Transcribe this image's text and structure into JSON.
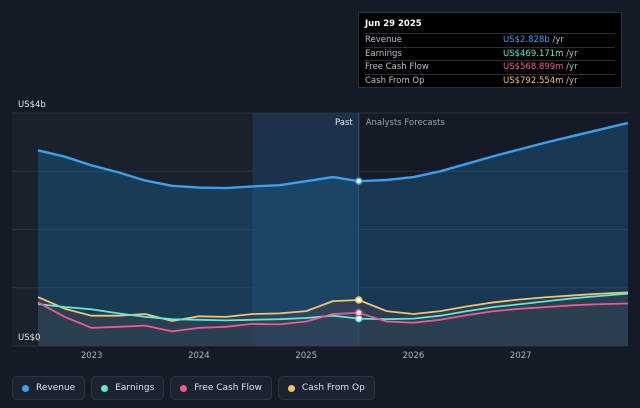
{
  "tooltip": {
    "date": "Jun 29 2025",
    "rows": [
      {
        "label": "Revenue",
        "value": "US$2.828b",
        "unit": "/yr",
        "color": "#3aa0f0"
      },
      {
        "label": "Earnings",
        "value": "US$469.171m",
        "unit": "/yr",
        "color": "#5ee8d6"
      },
      {
        "label": "Free Cash Flow",
        "value": "US$568.899m",
        "unit": "/yr",
        "color": "#f05a8e"
      },
      {
        "label": "Cash From Op",
        "value": "US$792.554m",
        "unit": "/yr",
        "color": "#f3c26b"
      }
    ]
  },
  "legend": [
    {
      "label": "Revenue",
      "color": "#3aa0f0"
    },
    {
      "label": "Earnings",
      "color": "#5ee8d6"
    },
    {
      "label": "Free Cash Flow",
      "color": "#f05a8e"
    },
    {
      "label": "Cash From Op",
      "color": "#f3c26b"
    }
  ],
  "chart_data": {
    "type": "line",
    "ylabel_top": "US$4b",
    "ylabel_bottom": "US$0",
    "ylim": [
      0,
      4
    ],
    "xlim": [
      2022.5,
      2028.0
    ],
    "x_ticks": [
      "2023",
      "2024",
      "2025",
      "2026",
      "2027"
    ],
    "x_tick_values": [
      2023,
      2024,
      2025,
      2026,
      2027
    ],
    "past_label": "Past",
    "forecast_label": "Analysts Forecasts",
    "divider_x": 2025.49,
    "past_band_start": 2024.5,
    "grid": true,
    "series": [
      {
        "name": "Revenue",
        "color": "#3aa0f0",
        "x": [
          2022.5,
          2022.75,
          2023.0,
          2023.25,
          2023.5,
          2023.75,
          2024.0,
          2024.25,
          2024.5,
          2024.75,
          2025.0,
          2025.25,
          2025.49,
          2025.75,
          2026.0,
          2026.25,
          2026.5,
          2026.75,
          2027.0,
          2027.25,
          2027.5,
          2027.75,
          2028.0
        ],
        "y": [
          3.36,
          3.25,
          3.1,
          2.98,
          2.84,
          2.75,
          2.72,
          2.71,
          2.74,
          2.76,
          2.83,
          2.9,
          2.83,
          2.85,
          2.9,
          3.0,
          3.13,
          3.26,
          3.38,
          3.5,
          3.61,
          3.72,
          3.83
        ]
      },
      {
        "name": "Earnings",
        "color": "#5ee8d6",
        "x": [
          2022.5,
          2022.75,
          2023.0,
          2023.25,
          2023.5,
          2023.75,
          2024.0,
          2024.25,
          2024.5,
          2024.75,
          2025.0,
          2025.25,
          2025.49,
          2025.75,
          2026.0,
          2026.25,
          2026.5,
          2026.75,
          2027.0,
          2027.25,
          2027.5,
          2027.75,
          2028.0
        ],
        "y": [
          0.72,
          0.67,
          0.63,
          0.56,
          0.5,
          0.46,
          0.45,
          0.44,
          0.45,
          0.46,
          0.48,
          0.52,
          0.47,
          0.46,
          0.47,
          0.52,
          0.6,
          0.67,
          0.72,
          0.77,
          0.82,
          0.86,
          0.9
        ]
      },
      {
        "name": "Free Cash Flow",
        "color": "#f05a8e",
        "x": [
          2022.5,
          2022.75,
          2023.0,
          2023.25,
          2023.5,
          2023.75,
          2024.0,
          2024.25,
          2024.5,
          2024.75,
          2025.0,
          2025.25,
          2025.49,
          2025.75,
          2026.0,
          2026.25,
          2026.5,
          2026.75,
          2027.0,
          2027.25,
          2027.5,
          2027.75,
          2028.0
        ],
        "y": [
          0.75,
          0.5,
          0.31,
          0.33,
          0.35,
          0.25,
          0.31,
          0.33,
          0.38,
          0.37,
          0.42,
          0.55,
          0.57,
          0.42,
          0.4,
          0.45,
          0.53,
          0.6,
          0.64,
          0.67,
          0.7,
          0.72,
          0.73
        ]
      },
      {
        "name": "Cash From Op",
        "color": "#f3c26b",
        "x": [
          2022.5,
          2022.75,
          2023.0,
          2023.25,
          2023.5,
          2023.75,
          2024.0,
          2024.25,
          2024.5,
          2024.75,
          2025.0,
          2025.25,
          2025.49,
          2025.75,
          2026.0,
          2026.25,
          2026.5,
          2026.75,
          2027.0,
          2027.25,
          2027.5,
          2027.75,
          2028.0
        ],
        "y": [
          0.84,
          0.64,
          0.52,
          0.52,
          0.55,
          0.43,
          0.51,
          0.5,
          0.55,
          0.56,
          0.6,
          0.77,
          0.79,
          0.6,
          0.55,
          0.6,
          0.68,
          0.75,
          0.8,
          0.84,
          0.87,
          0.9,
          0.92
        ]
      }
    ]
  }
}
